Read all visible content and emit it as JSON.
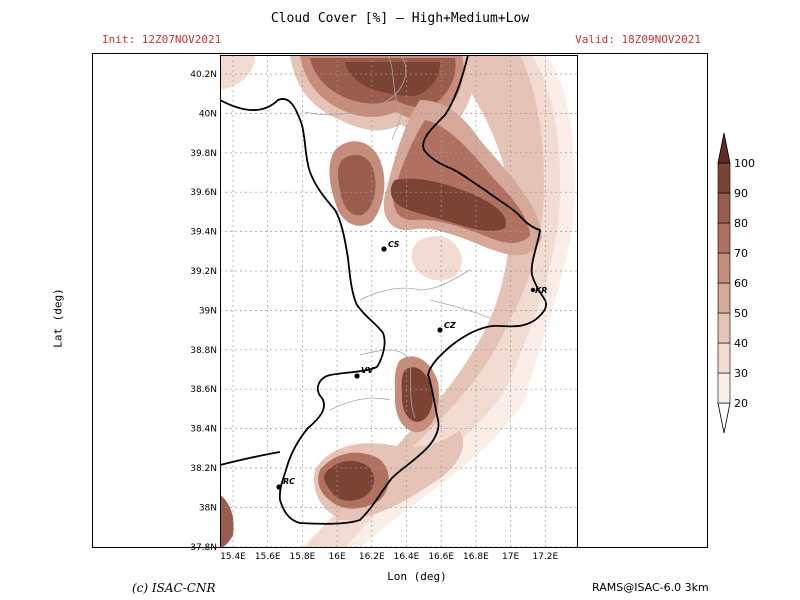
{
  "header": {
    "title": "Cloud Cover [%] — High+Medium+Low",
    "init_label": "Init: 12Z07NOV2021",
    "valid_label": "Valid: 18Z09NOV2021"
  },
  "axes": {
    "xlabel": "Lon (deg)",
    "ylabel": "Lat (deg)",
    "lon_ticks": [
      "15.4E",
      "15.6E",
      "15.8E",
      "16E",
      "16.2E",
      "16.4E",
      "16.6E",
      "16.8E",
      "17E",
      "17.2E"
    ],
    "lat_ticks": [
      "40.2N",
      "40N",
      "39.8N",
      "39.6N",
      "39.4N",
      "39.2N",
      "39N",
      "38.8N",
      "38.6N",
      "38.4N",
      "38.2N",
      "38N",
      "37.8N"
    ]
  },
  "colorbar": {
    "levels": [
      "20",
      "30",
      "40",
      "50",
      "60",
      "70",
      "80",
      "90",
      "100"
    ],
    "colors": [
      "#ffffff",
      "#fbeee8",
      "#f2dcd2",
      "#e5c4b7",
      "#d6a899",
      "#c68c7c",
      "#b17161",
      "#9a5c4c",
      "#7a4334",
      "#5e2c20"
    ]
  },
  "cities": [
    {
      "label": "CS"
    },
    {
      "label": "KR"
    },
    {
      "label": "CZ"
    },
    {
      "label": "VV"
    },
    {
      "label": "RC"
    }
  ],
  "footer": {
    "copyright": "(c) ISAC-CNR",
    "model": "RAMS@ISAC-6.0 3km"
  }
}
